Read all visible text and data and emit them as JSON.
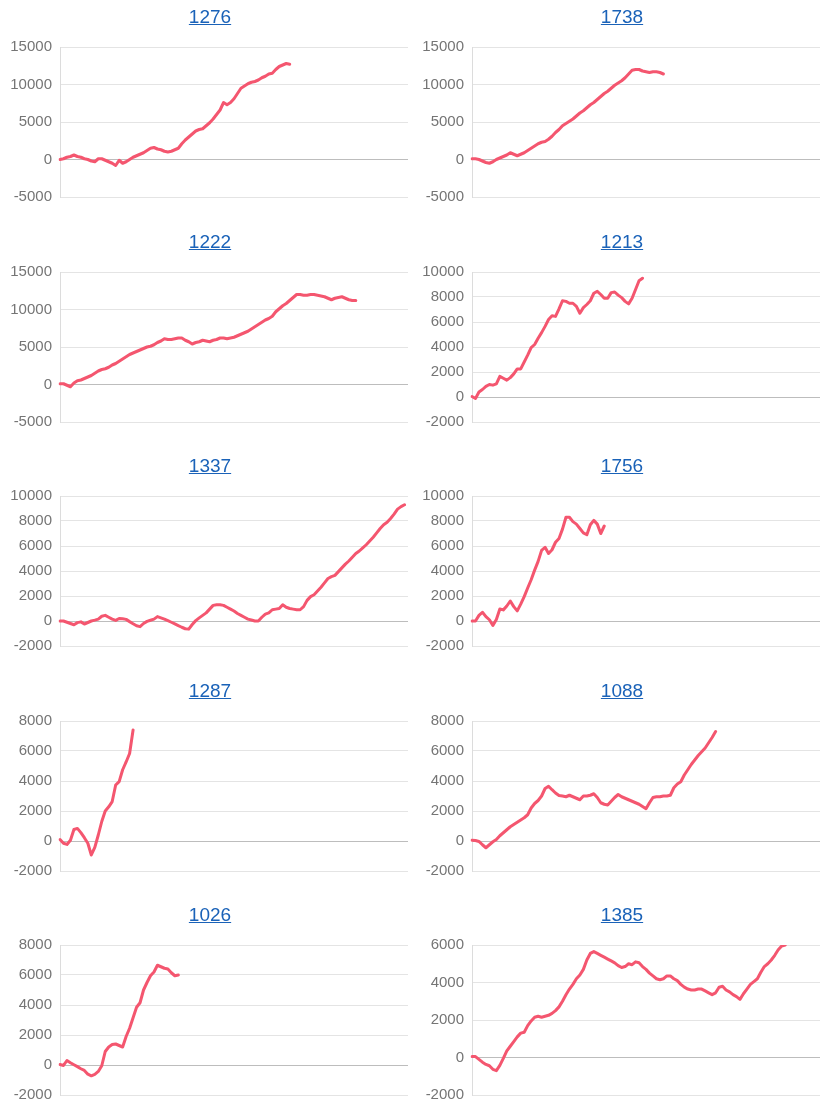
{
  "chart_data": [
    {
      "type": "line",
      "title": "1276",
      "categories": [
        null,
        null,
        null,
        null,
        null,
        null,
        null,
        null,
        null,
        null,
        null,
        null,
        null,
        null,
        null,
        null,
        null,
        null,
        null,
        null,
        null,
        null,
        null,
        null,
        null,
        null,
        null,
        null,
        null,
        null,
        null,
        null,
        null,
        null,
        null,
        null,
        null,
        null,
        null,
        null,
        null,
        null,
        null,
        null,
        null,
        null,
        null,
        null,
        null,
        null,
        null,
        null,
        null,
        null,
        null,
        null,
        null,
        null,
        null,
        null,
        null,
        null,
        null,
        null,
        null,
        null,
        null,
        null,
        null,
        null,
        null,
        null,
        null,
        null,
        null,
        null,
        null,
        null,
        null,
        null,
        null,
        null,
        null,
        null,
        null,
        null,
        null,
        null,
        null,
        null,
        null,
        null,
        null,
        null,
        null,
        null,
        null,
        null,
        null,
        null,
        null
      ],
      "values": [
        0,
        100,
        300,
        400,
        600,
        400,
        300,
        100,
        0,
        -200,
        -300,
        100,
        100,
        -100,
        -300,
        -500,
        -800,
        -100,
        -500,
        -300,
        0,
        300,
        500,
        700,
        900,
        1200,
        1500,
        1600,
        1400,
        1300,
        1100,
        1000,
        1100,
        1300,
        1500,
        2100,
        2600,
        3000,
        3400,
        3800,
        4000,
        4100,
        4500,
        4900,
        5400,
        6000,
        6600,
        7600,
        7300,
        7600,
        8100,
        8800,
        9500,
        9800,
        10100,
        10300,
        10400,
        10600,
        10900,
        11100,
        11400,
        11500,
        12000,
        12400,
        12600,
        12800,
        12700,
        null,
        null,
        null,
        null,
        null,
        null,
        null,
        null,
        null,
        null,
        null,
        null,
        null,
        null,
        null,
        null,
        null,
        null,
        null,
        null,
        null,
        null,
        null,
        null,
        null,
        null,
        null,
        null,
        null,
        null,
        null,
        null,
        null,
        null
      ],
      "color": "#f4566f",
      "ylim": [
        -5000,
        15000
      ],
      "yticks": [
        -5000,
        0,
        5000,
        10000,
        15000
      ],
      "grid": "y",
      "tick_labels": "y"
    },
    {
      "type": "line",
      "title": "1738",
      "categories": [
        null,
        null,
        null,
        null,
        null,
        null,
        null,
        null,
        null,
        null,
        null,
        null,
        null,
        null,
        null,
        null,
        null,
        null,
        null,
        null,
        null,
        null,
        null,
        null,
        null,
        null,
        null,
        null,
        null,
        null,
        null,
        null,
        null,
        null,
        null,
        null,
        null,
        null,
        null,
        null,
        null,
        null,
        null,
        null,
        null,
        null,
        null,
        null,
        null,
        null,
        null,
        null,
        null,
        null,
        null,
        null,
        null,
        null,
        null,
        null,
        null,
        null,
        null,
        null,
        null,
        null,
        null,
        null,
        null,
        null,
        null,
        null,
        null,
        null,
        null,
        null,
        null,
        null,
        null,
        null,
        null,
        null,
        null,
        null,
        null,
        null,
        null,
        null,
        null,
        null,
        null,
        null,
        null,
        null,
        null,
        null,
        null,
        null,
        null,
        null,
        null
      ],
      "values": [
        100,
        100,
        0,
        -200,
        -400,
        -500,
        -300,
        0,
        200,
        400,
        600,
        900,
        700,
        500,
        700,
        900,
        1200,
        1500,
        1800,
        2100,
        2300,
        2400,
        2700,
        3100,
        3600,
        4000,
        4500,
        4800,
        5100,
        5400,
        5800,
        6200,
        6500,
        6900,
        7300,
        7600,
        8000,
        8400,
        8800,
        9100,
        9500,
        9900,
        10200,
        10500,
        10900,
        11400,
        11900,
        12000,
        12000,
        11800,
        11700,
        11600,
        11700,
        11700,
        11600,
        11400,
        null,
        null,
        null,
        null,
        null,
        null,
        null,
        null,
        null,
        null,
        null,
        null,
        null,
        null,
        null,
        null,
        null,
        null,
        null,
        null,
        null,
        null,
        null,
        null,
        null,
        null,
        null,
        null,
        null,
        null,
        null,
        null,
        null,
        null,
        null,
        null,
        null,
        null,
        null,
        null,
        null,
        null,
        null,
        null,
        null
      ],
      "color": "#f4566f",
      "ylim": [
        -5000,
        15000
      ],
      "yticks": [
        -5000,
        0,
        5000,
        10000,
        15000
      ],
      "grid": "y",
      "tick_labels": "y"
    },
    {
      "type": "line",
      "title": "1222",
      "categories": [
        null,
        null,
        null,
        null,
        null,
        null,
        null,
        null,
        null,
        null,
        null,
        null,
        null,
        null,
        null,
        null,
        null,
        null,
        null,
        null,
        null,
        null,
        null,
        null,
        null,
        null,
        null,
        null,
        null,
        null,
        null,
        null,
        null,
        null,
        null,
        null,
        null,
        null,
        null,
        null,
        null,
        null,
        null,
        null,
        null,
        null,
        null,
        null,
        null,
        null,
        null,
        null,
        null,
        null,
        null,
        null,
        null,
        null,
        null,
        null,
        null,
        null,
        null,
        null,
        null,
        null,
        null,
        null,
        null,
        null,
        null,
        null,
        null,
        null,
        null,
        null,
        null,
        null,
        null,
        null,
        null,
        null,
        null,
        null,
        null,
        null,
        null,
        null,
        null,
        null,
        null,
        null,
        null,
        null,
        null,
        null,
        null,
        null,
        null,
        null,
        null
      ],
      "values": [
        100,
        100,
        -100,
        -300,
        200,
        500,
        600,
        800,
        1000,
        1200,
        1500,
        1800,
        2000,
        2100,
        2300,
        2600,
        2800,
        3100,
        3400,
        3700,
        4000,
        4200,
        4400,
        4600,
        4800,
        5000,
        5100,
        5300,
        5600,
        5800,
        6100,
        6000,
        6000,
        6100,
        6200,
        6200,
        5900,
        5700,
        5400,
        5600,
        5700,
        5900,
        5800,
        5700,
        5900,
        6000,
        6200,
        6200,
        6100,
        6200,
        6300,
        6500,
        6700,
        6900,
        7100,
        7400,
        7700,
        8000,
        8300,
        8600,
        8800,
        9100,
        9700,
        10100,
        10500,
        10800,
        11200,
        11600,
        12000,
        12000,
        11900,
        11900,
        12000,
        12000,
        11900,
        11800,
        11700,
        11500,
        11300,
        11500,
        11600,
        11700,
        11500,
        11300,
        11200,
        11200,
        null,
        null,
        null,
        null,
        null,
        null,
        null,
        null,
        null,
        null,
        null,
        null,
        null,
        null,
        null
      ],
      "color": "#f4566f",
      "ylim": [
        -5000,
        15000
      ],
      "yticks": [
        -5000,
        0,
        5000,
        10000,
        15000
      ],
      "grid": "y",
      "tick_labels": "y"
    },
    {
      "type": "line",
      "title": "1213",
      "categories": [
        null,
        null,
        null,
        null,
        null,
        null,
        null,
        null,
        null,
        null,
        null,
        null,
        null,
        null,
        null,
        null,
        null,
        null,
        null,
        null,
        null,
        null,
        null,
        null,
        null,
        null,
        null,
        null,
        null,
        null,
        null,
        null,
        null,
        null,
        null,
        null,
        null,
        null,
        null,
        null,
        null,
        null,
        null,
        null,
        null,
        null,
        null,
        null,
        null,
        null,
        null,
        null,
        null,
        null,
        null,
        null,
        null,
        null,
        null,
        null,
        null,
        null,
        null,
        null,
        null,
        null,
        null,
        null,
        null,
        null,
        null,
        null,
        null,
        null,
        null,
        null,
        null,
        null,
        null,
        null,
        null,
        null,
        null,
        null,
        null,
        null,
        null,
        null,
        null,
        null,
        null,
        null,
        null,
        null,
        null,
        null,
        null,
        null,
        null,
        null,
        null
      ],
      "values": [
        40,
        -120,
        400,
        600,
        850,
        1000,
        950,
        1050,
        1650,
        1500,
        1350,
        1550,
        1850,
        2250,
        2250,
        2800,
        3350,
        3950,
        4200,
        4700,
        5150,
        5650,
        6200,
        6500,
        6450,
        7050,
        7700,
        7650,
        7500,
        7500,
        7250,
        6700,
        7150,
        7400,
        7700,
        8300,
        8450,
        8200,
        7900,
        7900,
        8350,
        8400,
        8150,
        7950,
        7650,
        7450,
        7900,
        8600,
        9300,
        9500,
        null,
        null,
        null,
        null,
        null,
        null,
        null,
        null,
        null,
        null,
        null,
        null,
        null,
        null,
        null,
        null,
        null,
        null,
        null,
        null,
        null,
        null,
        null,
        null,
        null,
        null,
        null,
        null,
        null,
        null,
        null,
        null,
        null,
        null,
        null,
        null,
        null,
        null,
        null,
        null,
        null,
        null,
        null,
        null,
        null,
        null,
        null,
        null,
        null,
        null,
        null
      ],
      "color": "#f4566f",
      "ylim": [
        -2000,
        10000
      ],
      "yticks": [
        -2000,
        0,
        2000,
        4000,
        6000,
        8000,
        10000
      ],
      "grid": "y",
      "tick_labels": "y"
    },
    {
      "type": "line",
      "title": "1337",
      "categories": [
        null,
        null,
        null,
        null,
        null,
        null,
        null,
        null,
        null,
        null,
        null,
        null,
        null,
        null,
        null,
        null,
        null,
        null,
        null,
        null,
        null,
        null,
        null,
        null,
        null,
        null,
        null,
        null,
        null,
        null,
        null,
        null,
        null,
        null,
        null,
        null,
        null,
        null,
        null,
        null,
        null,
        null,
        null,
        null,
        null,
        null,
        null,
        null,
        null,
        null,
        null,
        null,
        null,
        null,
        null,
        null,
        null,
        null,
        null,
        null,
        null,
        null,
        null,
        null,
        null,
        null,
        null,
        null,
        null,
        null,
        null,
        null,
        null,
        null,
        null,
        null,
        null,
        null,
        null,
        null,
        null,
        null,
        null,
        null,
        null,
        null,
        null,
        null,
        null,
        null,
        null,
        null,
        null,
        null,
        null,
        null,
        null,
        null,
        null,
        null,
        null
      ],
      "values": [
        0,
        0,
        -100,
        -200,
        -300,
        -130,
        -70,
        -240,
        -120,
        0,
        70,
        150,
        380,
        450,
        300,
        150,
        50,
        200,
        180,
        130,
        -50,
        -220,
        -380,
        -450,
        -200,
        -30,
        60,
        150,
        350,
        250,
        150,
        30,
        -100,
        -230,
        -370,
        -500,
        -620,
        -650,
        -280,
        30,
        250,
        450,
        650,
        950,
        1250,
        1300,
        1300,
        1250,
        1100,
        950,
        800,
        600,
        450,
        300,
        150,
        80,
        0,
        0,
        300,
        550,
        650,
        900,
        950,
        1000,
        1300,
        1100,
        1000,
        950,
        900,
        900,
        1150,
        1650,
        1950,
        2100,
        2400,
        2700,
        3050,
        3400,
        3550,
        3650,
        3950,
        4250,
        4550,
        4800,
        5100,
        5400,
        5600,
        5850,
        6100,
        6400,
        6700,
        7050,
        7400,
        7700,
        7900,
        8200,
        8550,
        8950,
        9150,
        9300,
        null
      ],
      "color": "#f4566f",
      "ylim": [
        -2000,
        10000
      ],
      "yticks": [
        -2000,
        0,
        2000,
        4000,
        6000,
        8000,
        10000
      ],
      "grid": "y",
      "tick_labels": "y"
    },
    {
      "type": "line",
      "title": "1756",
      "categories": [
        null,
        null,
        null,
        null,
        null,
        null,
        null,
        null,
        null,
        null,
        null,
        null,
        null,
        null,
        null,
        null,
        null,
        null,
        null,
        null,
        null,
        null,
        null,
        null,
        null,
        null,
        null,
        null,
        null,
        null,
        null,
        null,
        null,
        null,
        null,
        null,
        null,
        null,
        null,
        null,
        null,
        null,
        null,
        null,
        null,
        null,
        null,
        null,
        null,
        null,
        null,
        null,
        null,
        null,
        null,
        null,
        null,
        null,
        null,
        null,
        null,
        null,
        null,
        null,
        null,
        null,
        null,
        null,
        null,
        null,
        null,
        null,
        null,
        null,
        null,
        null,
        null,
        null,
        null,
        null,
        null,
        null,
        null,
        null,
        null,
        null,
        null,
        null,
        null,
        null,
        null,
        null,
        null,
        null,
        null,
        null,
        null,
        null,
        null,
        null,
        null
      ],
      "values": [
        0,
        0,
        450,
        700,
        350,
        100,
        -350,
        120,
        960,
        890,
        1200,
        1600,
        1150,
        810,
        1350,
        1950,
        2640,
        3300,
        4070,
        4770,
        5650,
        5900,
        5400,
        5700,
        6300,
        6600,
        7350,
        8300,
        8300,
        7950,
        7750,
        7400,
        7050,
        6900,
        7700,
        8050,
        7750,
        7000,
        7600,
        null,
        null,
        null,
        null,
        null,
        null,
        null,
        null,
        null,
        null,
        null,
        null,
        null,
        null,
        null,
        null,
        null,
        null,
        null,
        null,
        null,
        null,
        null,
        null,
        null,
        null,
        null,
        null,
        null,
        null,
        null,
        null,
        null,
        null,
        null,
        null,
        null,
        null,
        null,
        null,
        null,
        null,
        null,
        null,
        null,
        null,
        null,
        null,
        null,
        null,
        null,
        null,
        null,
        null,
        null,
        null,
        null,
        null,
        null,
        null,
        null,
        null
      ],
      "color": "#f4566f",
      "ylim": [
        -2000,
        10000
      ],
      "yticks": [
        -2000,
        0,
        2000,
        4000,
        6000,
        8000,
        10000
      ],
      "grid": "y",
      "tick_labels": "y"
    },
    {
      "type": "line",
      "title": "1287",
      "categories": [
        null,
        null,
        null,
        null,
        null,
        null,
        null,
        null,
        null,
        null,
        null,
        null,
        null,
        null,
        null,
        null,
        null,
        null,
        null,
        null,
        null,
        null,
        null,
        null,
        null,
        null,
        null,
        null,
        null,
        null,
        null,
        null,
        null,
        null,
        null,
        null,
        null,
        null,
        null,
        null,
        null,
        null,
        null,
        null,
        null,
        null,
        null,
        null,
        null,
        null,
        null,
        null,
        null,
        null,
        null,
        null,
        null,
        null,
        null,
        null,
        null,
        null,
        null,
        null,
        null,
        null,
        null,
        null,
        null,
        null,
        null,
        null,
        null,
        null,
        null,
        null,
        null,
        null,
        null,
        null,
        null,
        null,
        null,
        null,
        null,
        null,
        null,
        null,
        null,
        null,
        null,
        null,
        null,
        null,
        null,
        null,
        null,
        null,
        null,
        null,
        null
      ],
      "values": [
        100,
        -150,
        -230,
        50,
        770,
        840,
        560,
        220,
        -150,
        -930,
        -420,
        400,
        1300,
        2000,
        2280,
        2630,
        3730,
        3960,
        4750,
        5270,
        5830,
        7400,
        null,
        null,
        null,
        null,
        null,
        null,
        null,
        null,
        null,
        null,
        null,
        null,
        null,
        null,
        null,
        null,
        null,
        null,
        null,
        null,
        null,
        null,
        null,
        null,
        null,
        null,
        null,
        null,
        null,
        null,
        null,
        null,
        null,
        null,
        null,
        null,
        null,
        null,
        null,
        null,
        null,
        null,
        null,
        null,
        null,
        null,
        null,
        null,
        null,
        null,
        null,
        null,
        null,
        null,
        null,
        null,
        null,
        null,
        null,
        null,
        null,
        null,
        null,
        null,
        null,
        null,
        null,
        null,
        null,
        null,
        null,
        null,
        null,
        null,
        null,
        null,
        null,
        null,
        null
      ],
      "color": "#f4566f",
      "ylim": [
        -2000,
        8000
      ],
      "yticks": [
        -2000,
        0,
        2000,
        4000,
        6000,
        8000
      ],
      "grid": "y",
      "tick_labels": "y"
    },
    {
      "type": "line",
      "title": "1088",
      "categories": [
        null,
        null,
        null,
        null,
        null,
        null,
        null,
        null,
        null,
        null,
        null,
        null,
        null,
        null,
        null,
        null,
        null,
        null,
        null,
        null,
        null,
        null,
        null,
        null,
        null,
        null,
        null,
        null,
        null,
        null,
        null,
        null,
        null,
        null,
        null,
        null,
        null,
        null,
        null,
        null,
        null,
        null,
        null,
        null,
        null,
        null,
        null,
        null,
        null,
        null,
        null,
        null,
        null,
        null,
        null,
        null,
        null,
        null,
        null,
        null,
        null,
        null,
        null,
        null,
        null,
        null,
        null,
        null,
        null,
        null,
        null,
        null,
        null,
        null,
        null,
        null,
        null,
        null,
        null,
        null,
        null,
        null,
        null,
        null,
        null,
        null,
        null,
        null,
        null,
        null,
        null,
        null,
        null,
        null,
        null,
        null,
        null,
        null,
        null,
        null,
        null
      ],
      "values": [
        50,
        30,
        -30,
        -250,
        -450,
        -250,
        -50,
        100,
        350,
        550,
        750,
        950,
        1100,
        1250,
        1400,
        1550,
        1750,
        2200,
        2500,
        2700,
        3000,
        3500,
        3650,
        3420,
        3200,
        3030,
        3000,
        2950,
        3050,
        2950,
        2850,
        2750,
        3000,
        3000,
        3050,
        3150,
        2900,
        2550,
        2450,
        2400,
        2650,
        2900,
        3100,
        2950,
        2850,
        2750,
        2650,
        2550,
        2450,
        2300,
        2150,
        2550,
        2900,
        2950,
        2950,
        3000,
        3000,
        3050,
        3550,
        3800,
        3950,
        4400,
        4750,
        5100,
        5400,
        5700,
        5950,
        6200,
        6550,
        6900,
        7300,
        null,
        null,
        null,
        null,
        null,
        null,
        null,
        null,
        null,
        null,
        null,
        null,
        null,
        null,
        null,
        null,
        null,
        null,
        null,
        null,
        null,
        null,
        null,
        null,
        null,
        null,
        null,
        null,
        null,
        null
      ],
      "color": "#f4566f",
      "ylim": [
        -2000,
        8000
      ],
      "yticks": [
        -2000,
        0,
        2000,
        4000,
        6000,
        8000
      ],
      "grid": "y",
      "tick_labels": "y"
    },
    {
      "type": "line",
      "title": "1026",
      "categories": [
        null,
        null,
        null,
        null,
        null,
        null,
        null,
        null,
        null,
        null,
        null,
        null,
        null,
        null,
        null,
        null,
        null,
        null,
        null,
        null,
        null,
        null,
        null,
        null,
        null,
        null,
        null,
        null,
        null,
        null,
        null,
        null,
        null,
        null,
        null,
        null,
        null,
        null,
        null,
        null,
        null,
        null,
        null,
        null,
        null,
        null,
        null,
        null,
        null,
        null,
        null,
        null,
        null,
        null,
        null,
        null,
        null,
        null,
        null,
        null,
        null,
        null,
        null,
        null,
        null,
        null,
        null,
        null,
        null,
        null,
        null,
        null,
        null,
        null,
        null,
        null,
        null,
        null,
        null,
        null,
        null,
        null,
        null,
        null,
        null,
        null,
        null,
        null,
        null,
        null,
        null,
        null,
        null,
        null,
        null,
        null,
        null,
        null,
        null,
        null,
        null
      ],
      "values": [
        30,
        -30,
        300,
        150,
        20,
        -110,
        -250,
        -360,
        -610,
        -720,
        -620,
        -430,
        -50,
        900,
        1200,
        1360,
        1400,
        1300,
        1200,
        1900,
        2450,
        3150,
        3850,
        4150,
        5000,
        5500,
        5950,
        6200,
        6650,
        6550,
        6450,
        6400,
        6150,
        5950,
        6000,
        null,
        null,
        null,
        null,
        null,
        null,
        null,
        null,
        null,
        null,
        null,
        null,
        null,
        null,
        null,
        null,
        null,
        null,
        null,
        null,
        null,
        null,
        null,
        null,
        null,
        null,
        null,
        null,
        null,
        null,
        null,
        null,
        null,
        null,
        null,
        null,
        null,
        null,
        null,
        null,
        null,
        null,
        null,
        null,
        null,
        null,
        null,
        null,
        null,
        null,
        null,
        null,
        null,
        null,
        null,
        null,
        null,
        null,
        null,
        null,
        null,
        null,
        null,
        null,
        null,
        null
      ],
      "color": "#f4566f",
      "ylim": [
        -2000,
        8000
      ],
      "yticks": [
        -2000,
        0,
        2000,
        4000,
        6000,
        8000
      ],
      "grid": "y",
      "tick_labels": "y"
    },
    {
      "type": "line",
      "title": "1385",
      "categories": [
        null,
        null,
        null,
        null,
        null,
        null,
        null,
        null,
        null,
        null,
        null,
        null,
        null,
        null,
        null,
        null,
        null,
        null,
        null,
        null,
        null,
        null,
        null,
        null,
        null,
        null,
        null,
        null,
        null,
        null,
        null,
        null,
        null,
        null,
        null,
        null,
        null,
        null,
        null,
        null,
        null,
        null,
        null,
        null,
        null,
        null,
        null,
        null,
        null,
        null,
        null,
        null,
        null,
        null,
        null,
        null,
        null,
        null,
        null,
        null,
        null,
        null,
        null,
        null,
        null,
        null,
        null,
        null,
        null,
        null,
        null,
        null,
        null,
        null,
        null,
        null,
        null,
        null,
        null,
        null,
        null,
        null,
        null,
        null,
        null,
        null,
        null,
        null,
        null,
        null,
        null,
        null,
        null,
        null,
        null,
        null,
        null,
        null,
        null,
        null,
        null
      ],
      "values": [
        50,
        50,
        -100,
        -250,
        -370,
        -440,
        -630,
        -700,
        -420,
        -50,
        350,
        600,
        850,
        1100,
        1300,
        1350,
        1700,
        1950,
        2150,
        2200,
        2150,
        2200,
        2250,
        2350,
        2500,
        2700,
        3000,
        3350,
        3650,
        3900,
        4200,
        4400,
        4700,
        5200,
        5550,
        5650,
        5550,
        5450,
        5350,
        5250,
        5150,
        5050,
        4900,
        4800,
        4850,
        5000,
        4950,
        5100,
        5050,
        4850,
        4700,
        4500,
        4350,
        4200,
        4150,
        4200,
        4350,
        4350,
        4200,
        4100,
        3900,
        3750,
        3650,
        3600,
        3600,
        3650,
        3650,
        3550,
        3450,
        3350,
        3450,
        3750,
        3800,
        3600,
        3500,
        3350,
        3250,
        3100,
        3400,
        3650,
        3900,
        4050,
        4200,
        4550,
        4850,
        5000,
        5200,
        5450,
        5750,
        5950,
        6000,
        null,
        null,
        null,
        null,
        null,
        null,
        null,
        null,
        null,
        null
      ],
      "color": "#f4566f",
      "ylim": [
        -2000,
        6000
      ],
      "yticks": [
        -2000,
        0,
        2000,
        4000,
        6000
      ],
      "grid": "y",
      "tick_labels": "y"
    }
  ]
}
